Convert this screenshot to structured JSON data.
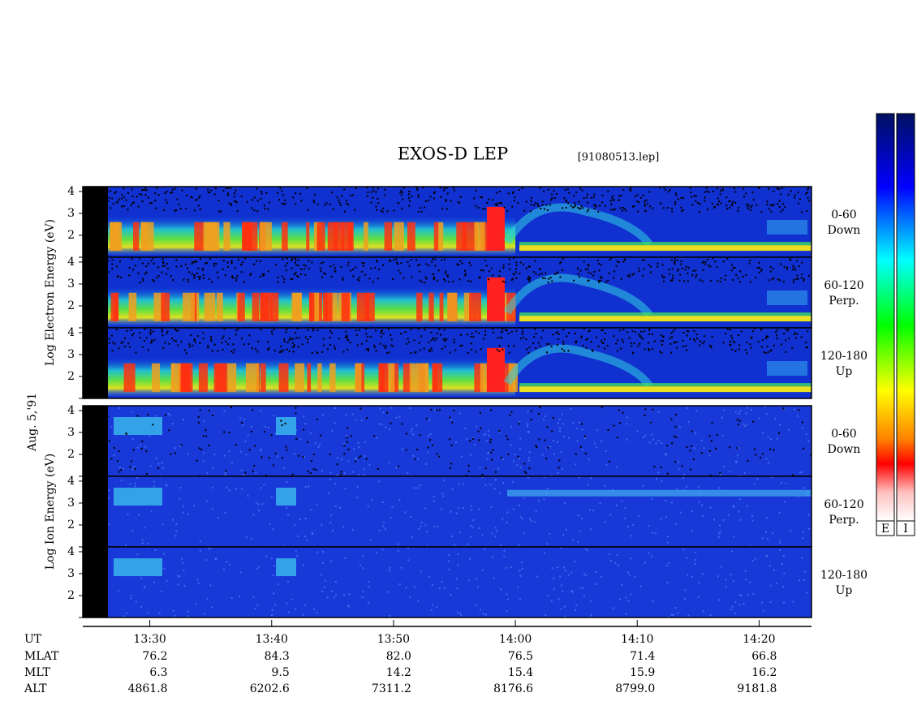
{
  "chart_data": {
    "type": "spectrogram",
    "title": "EXOS-D LEP",
    "subtitle": "[91080513.lep]",
    "date": "Aug. 5,'91",
    "groups": [
      {
        "ylabel": "Log Electron Energy (eV)",
        "species": "electron",
        "panels": [
          {
            "pitch": "0-60",
            "direction": "Down"
          },
          {
            "pitch": "60-120",
            "direction": "Perp."
          },
          {
            "pitch": "120-180",
            "direction": "Up"
          }
        ]
      },
      {
        "ylabel": "Log Ion Energy (eV)",
        "species": "ion",
        "panels": [
          {
            "pitch": "0-60",
            "direction": "Down"
          },
          {
            "pitch": "60-120",
            "direction": "Perp."
          },
          {
            "pitch": "120-180",
            "direction": "Up"
          }
        ]
      }
    ],
    "ylim": [
      1,
      4.22
    ],
    "yticks": [
      2,
      3,
      4
    ],
    "xlim": [
      804.5,
      864.3
    ],
    "x_label": "UT",
    "xticks": [
      {
        "value": 810,
        "label": "13:30"
      },
      {
        "value": 820,
        "label": "13:40"
      },
      {
        "value": 830,
        "label": "13:50"
      },
      {
        "value": 840,
        "label": "14:00"
      },
      {
        "value": 850,
        "label": "14:10"
      },
      {
        "value": 860,
        "label": "14:20"
      }
    ],
    "orbit": [
      {
        "name": "MLAT",
        "values": [
          76.2,
          84.3,
          82.0,
          76.5,
          71.4,
          66.8
        ],
        "value_labels": [
          "76.2",
          "84.3",
          "82.0",
          "76.5",
          "71.4",
          "66.8"
        ]
      },
      {
        "name": "MLT",
        "values": [
          6.3,
          9.5,
          14.2,
          15.4,
          15.9,
          16.2
        ]
      },
      {
        "name": "ALT",
        "values": [
          4861.8,
          6202.6,
          7311.2,
          8176.6,
          8799.0,
          9181.8
        ],
        "value_labels": [
          "4861.8",
          "6202.6",
          "7311.2",
          "8176.6",
          "8799.0",
          "9181.8"
        ]
      }
    ],
    "colorbars": [
      "E",
      "I"
    ]
  }
}
